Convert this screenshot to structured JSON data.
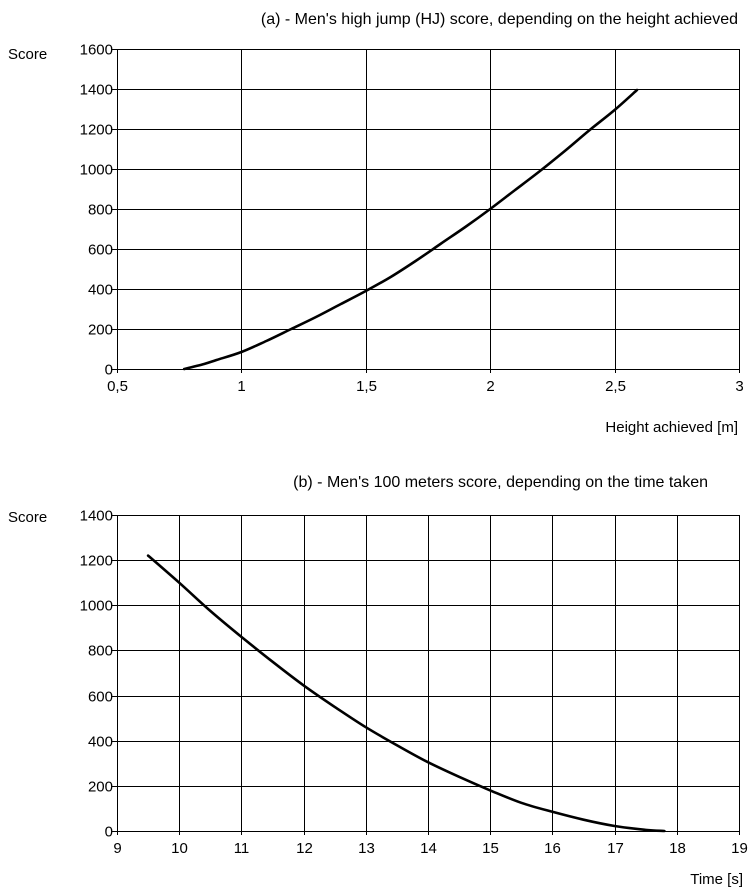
{
  "chart_data": [
    {
      "type": "line",
      "title": "(a) - Men's high jump (HJ) score, depending on the height achieved",
      "xlabel": "Height achieved [m]",
      "ylabel": "Score",
      "xlim": [
        0.5,
        3
      ],
      "ylim": [
        0,
        1600
      ],
      "x_ticks": [
        "0,5",
        "1",
        "1,5",
        "2",
        "2,5",
        "3"
      ],
      "y_ticks": [
        "0",
        "200",
        "400",
        "600",
        "800",
        "1000",
        "1200",
        "1400",
        "1600"
      ],
      "grid": true,
      "series": [
        {
          "x": [
            0.77,
            0.85,
            0.9,
            1.0,
            1.1,
            1.2,
            1.3,
            1.4,
            1.5,
            1.6,
            1.7,
            1.8,
            1.9,
            2.0,
            2.1,
            2.2,
            2.3,
            2.4,
            2.5,
            2.59
          ],
          "values": [
            0,
            25,
            45,
            85,
            140,
            200,
            260,
            325,
            390,
            460,
            540,
            625,
            710,
            800,
            895,
            990,
            1090,
            1195,
            1295,
            1395
          ]
        }
      ]
    },
    {
      "type": "line",
      "title": "(b) - Men's 100 meters score, depending on the time taken",
      "xlabel": "Time [s]",
      "ylabel": "Score",
      "xlim": [
        9,
        19
      ],
      "ylim": [
        0,
        1400
      ],
      "x_ticks": [
        "9",
        "10",
        "11",
        "12",
        "13",
        "14",
        "15",
        "16",
        "17",
        "18",
        "19"
      ],
      "y_ticks": [
        "0",
        "200",
        "400",
        "600",
        "800",
        "1000",
        "1200",
        "1400"
      ],
      "grid": true,
      "series": [
        {
          "x": [
            9.5,
            10.0,
            10.5,
            11.0,
            11.5,
            12.0,
            12.5,
            13.0,
            13.5,
            14.0,
            14.5,
            15.0,
            15.5,
            16.0,
            16.5,
            17.0,
            17.5,
            17.8
          ],
          "values": [
            1220,
            1100,
            975,
            860,
            750,
            645,
            550,
            460,
            380,
            305,
            240,
            180,
            125,
            85,
            50,
            22,
            5,
            0
          ]
        }
      ]
    }
  ]
}
